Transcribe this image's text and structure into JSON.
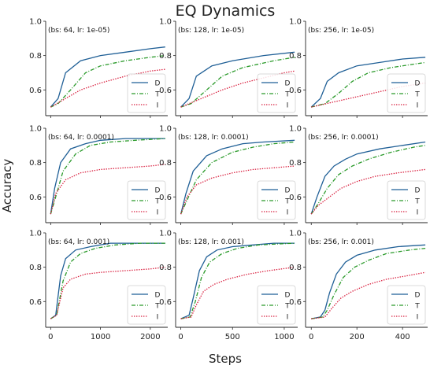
{
  "colors": {
    "D": "#1f5f96",
    "T": "#2a9a2a",
    "I": "#d81a3a"
  },
  "chart_data": {
    "type": "line",
    "title": "EQ Dynamics",
    "xlabel": "Steps",
    "ylabel": "Accuracy",
    "yticks": [
      "0.6",
      "0.8",
      "1.0"
    ],
    "ylim": [
      0.45,
      1.0
    ],
    "legend_placement": "lower-right",
    "legend": [
      "D",
      "T",
      "I"
    ],
    "columns": [
      {
        "xlim": [
          -100,
          2350
        ],
        "xticks": [
          0,
          1000,
          2000
        ],
        "xtick_labels": [
          "0",
          "1000",
          "2000"
        ]
      },
      {
        "xlim": [
          -50,
          1130
        ],
        "xticks": [
          0,
          500,
          1000
        ],
        "xtick_labels": [
          "0",
          "500",
          "1000"
        ]
      },
      {
        "xlim": [
          -25,
          510
        ],
        "xticks": [
          0,
          200,
          400
        ],
        "xtick_labels": [
          "0",
          "200",
          "400"
        ]
      }
    ],
    "panels": [
      {
        "label": "(bs: 64, lr: 1e-05)",
        "row": 0,
        "col": 0,
        "series": [
          {
            "name": "D",
            "x": [
              0,
              150,
              300,
              600,
              1000,
              1500,
              2000,
              2300
            ],
            "y": [
              0.5,
              0.55,
              0.7,
              0.77,
              0.8,
              0.82,
              0.84,
              0.85
            ]
          },
          {
            "name": "T",
            "x": [
              0,
              150,
              400,
              700,
              1000,
              1500,
              2000,
              2300
            ],
            "y": [
              0.5,
              0.52,
              0.6,
              0.7,
              0.74,
              0.77,
              0.79,
              0.8
            ]
          },
          {
            "name": "I",
            "x": [
              0,
              300,
              600,
              1000,
              1500,
              2000,
              2300
            ],
            "y": [
              0.5,
              0.55,
              0.6,
              0.64,
              0.68,
              0.71,
              0.72
            ]
          }
        ]
      },
      {
        "label": "(bs: 128, lr: 1e-05)",
        "row": 0,
        "col": 1,
        "series": [
          {
            "name": "D",
            "x": [
              0,
              80,
              150,
              300,
              500,
              800,
              1100
            ],
            "y": [
              0.5,
              0.55,
              0.68,
              0.74,
              0.77,
              0.8,
              0.82
            ]
          },
          {
            "name": "T",
            "x": [
              0,
              100,
              250,
              400,
              600,
              900,
              1100
            ],
            "y": [
              0.5,
              0.52,
              0.6,
              0.68,
              0.73,
              0.77,
              0.79
            ]
          },
          {
            "name": "I",
            "x": [
              0,
              200,
              400,
              600,
              800,
              1000,
              1100
            ],
            "y": [
              0.5,
              0.55,
              0.6,
              0.64,
              0.67,
              0.7,
              0.71
            ]
          }
        ]
      },
      {
        "label": "(bs: 256, lr: 1e-05)",
        "row": 0,
        "col": 2,
        "series": [
          {
            "name": "D",
            "x": [
              0,
              40,
              70,
              120,
              200,
              300,
              400,
              500
            ],
            "y": [
              0.5,
              0.55,
              0.65,
              0.7,
              0.74,
              0.76,
              0.78,
              0.79
            ]
          },
          {
            "name": "T",
            "x": [
              0,
              60,
              120,
              180,
              250,
              350,
              450,
              500
            ],
            "y": [
              0.5,
              0.52,
              0.58,
              0.65,
              0.7,
              0.73,
              0.75,
              0.76
            ]
          },
          {
            "name": "I",
            "x": [
              0,
              100,
              200,
              300,
              400,
              500
            ],
            "y": [
              0.5,
              0.53,
              0.56,
              0.59,
              0.62,
              0.64
            ]
          }
        ]
      },
      {
        "label": "(bs: 64, lr: 0.0001)",
        "row": 1,
        "col": 0,
        "series": [
          {
            "name": "D",
            "x": [
              0,
              80,
              200,
              400,
              700,
              1000,
              1500,
              2000,
              2300
            ],
            "y": [
              0.5,
              0.65,
              0.8,
              0.88,
              0.91,
              0.93,
              0.94,
              0.94,
              0.94
            ]
          },
          {
            "name": "T",
            "x": [
              0,
              100,
              250,
              500,
              800,
              1200,
              1700,
              2300
            ],
            "y": [
              0.5,
              0.6,
              0.75,
              0.85,
              0.9,
              0.92,
              0.93,
              0.94
            ]
          },
          {
            "name": "I",
            "x": [
              0,
              100,
              300,
              600,
              1000,
              1500,
              2000,
              2300
            ],
            "y": [
              0.5,
              0.62,
              0.7,
              0.74,
              0.76,
              0.77,
              0.78,
              0.79
            ]
          }
        ]
      },
      {
        "label": "(bs: 128, lr: 0.0001)",
        "row": 1,
        "col": 1,
        "series": [
          {
            "name": "D",
            "x": [
              0,
              50,
              120,
              250,
              400,
              600,
              800,
              1100
            ],
            "y": [
              0.5,
              0.62,
              0.75,
              0.84,
              0.88,
              0.91,
              0.92,
              0.93
            ]
          },
          {
            "name": "T",
            "x": [
              0,
              60,
              150,
              300,
              500,
              700,
              900,
              1100
            ],
            "y": [
              0.5,
              0.58,
              0.7,
              0.8,
              0.86,
              0.89,
              0.91,
              0.92
            ]
          },
          {
            "name": "I",
            "x": [
              0,
              60,
              150,
              300,
              500,
              700,
              900,
              1100
            ],
            "y": [
              0.5,
              0.6,
              0.67,
              0.71,
              0.74,
              0.76,
              0.77,
              0.78
            ]
          }
        ]
      },
      {
        "label": "(bs: 256, lr: 0.0001)",
        "row": 1,
        "col": 2,
        "series": [
          {
            "name": "D",
            "x": [
              0,
              25,
              60,
              100,
              150,
              200,
              300,
              400,
              500
            ],
            "y": [
              0.5,
              0.6,
              0.72,
              0.78,
              0.82,
              0.85,
              0.88,
              0.9,
              0.92
            ]
          },
          {
            "name": "T",
            "x": [
              0,
              30,
              70,
              120,
              180,
              250,
              350,
              450,
              500
            ],
            "y": [
              0.5,
              0.56,
              0.65,
              0.73,
              0.78,
              0.82,
              0.86,
              0.89,
              0.9
            ]
          },
          {
            "name": "I",
            "x": [
              0,
              30,
              80,
              130,
              200,
              280,
              380,
              500
            ],
            "y": [
              0.5,
              0.55,
              0.6,
              0.65,
              0.69,
              0.72,
              0.74,
              0.76
            ]
          }
        ]
      },
      {
        "label": "(bs: 64, lr: 0.001)",
        "row": 2,
        "col": 0,
        "series": [
          {
            "name": "D",
            "x": [
              0,
              100,
              200,
              300,
              500,
              800,
              1200,
              1600,
              2000,
              2300
            ],
            "y": [
              0.5,
              0.52,
              0.75,
              0.85,
              0.9,
              0.92,
              0.94,
              0.94,
              0.94,
              0.94
            ]
          },
          {
            "name": "T",
            "x": [
              0,
              120,
              250,
              400,
              600,
              900,
              1300,
              1800,
              2300
            ],
            "y": [
              0.5,
              0.52,
              0.72,
              0.83,
              0.88,
              0.91,
              0.93,
              0.94,
              0.94
            ]
          },
          {
            "name": "I",
            "x": [
              0,
              120,
              250,
              400,
              700,
              1000,
              1500,
              2000,
              2300
            ],
            "y": [
              0.5,
              0.52,
              0.68,
              0.73,
              0.76,
              0.77,
              0.78,
              0.79,
              0.8
            ]
          }
        ]
      },
      {
        "label": "(bs: 128, lr: 0.001)",
        "row": 2,
        "col": 1,
        "series": [
          {
            "name": "D",
            "x": [
              0,
              80,
              120,
              180,
              250,
              350,
              500,
              700,
              900,
              1100
            ],
            "y": [
              0.5,
              0.52,
              0.62,
              0.78,
              0.86,
              0.9,
              0.92,
              0.93,
              0.94,
              0.94
            ]
          },
          {
            "name": "T",
            "x": [
              0,
              90,
              140,
              200,
              280,
              400,
              550,
              750,
              1100
            ],
            "y": [
              0.5,
              0.51,
              0.6,
              0.74,
              0.83,
              0.88,
              0.91,
              0.93,
              0.94
            ]
          },
          {
            "name": "I",
            "x": [
              0,
              100,
              150,
              220,
              320,
              450,
              650,
              850,
              1100
            ],
            "y": [
              0.5,
              0.51,
              0.58,
              0.66,
              0.7,
              0.73,
              0.76,
              0.78,
              0.8
            ]
          }
        ]
      },
      {
        "label": "(bs: 256, lr: 0.001)",
        "row": 2,
        "col": 2,
        "series": [
          {
            "name": "D",
            "x": [
              0,
              40,
              60,
              80,
              110,
              150,
              200,
              280,
              380,
              500
            ],
            "y": [
              0.5,
              0.51,
              0.55,
              0.65,
              0.76,
              0.83,
              0.87,
              0.9,
              0.92,
              0.93
            ]
          },
          {
            "name": "T",
            "x": [
              0,
              50,
              70,
              100,
              140,
              190,
              250,
              330,
              430,
              500
            ],
            "y": [
              0.5,
              0.51,
              0.55,
              0.64,
              0.74,
              0.8,
              0.84,
              0.88,
              0.9,
              0.91
            ]
          },
          {
            "name": "I",
            "x": [
              0,
              60,
              90,
              130,
              180,
              250,
              330,
              420,
              500
            ],
            "y": [
              0.5,
              0.51,
              0.56,
              0.62,
              0.66,
              0.7,
              0.73,
              0.75,
              0.77
            ]
          }
        ]
      }
    ]
  }
}
